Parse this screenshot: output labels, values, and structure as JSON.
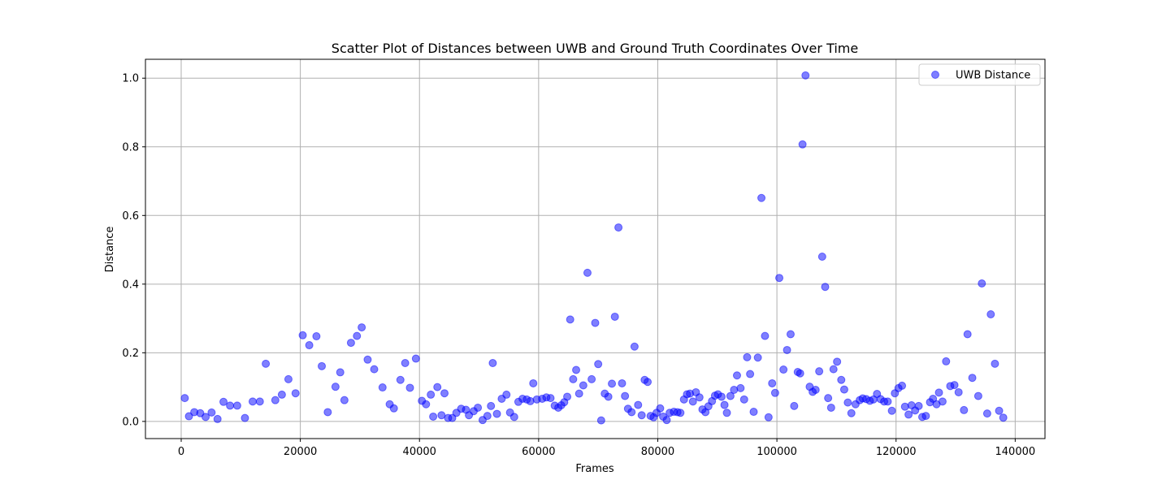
{
  "chart_data": {
    "type": "scatter",
    "title": "Scatter Plot of Distances between UWB and Ground Truth Coordinates Over Time",
    "xlabel": "Frames",
    "ylabel": "Distance",
    "xlim": [
      -6000,
      145000
    ],
    "ylim": [
      -0.05,
      1.055
    ],
    "xticks": [
      0,
      20000,
      40000,
      60000,
      80000,
      100000,
      120000,
      140000
    ],
    "yticks": [
      0.0,
      0.2,
      0.4,
      0.6,
      0.8,
      1.0
    ],
    "xtick_labels": [
      "0",
      "20000",
      "40000",
      "60000",
      "80000",
      "100000",
      "120000",
      "140000"
    ],
    "ytick_labels": [
      "0.0",
      "0.2",
      "0.4",
      "0.6",
      "0.8",
      "1.0"
    ],
    "grid": true,
    "legend_position": "top-right",
    "series": [
      {
        "name": "UWB Distance",
        "color": "#0000ff",
        "alpha": 0.5,
        "points": [
          [
            600,
            0.068
          ],
          [
            1300,
            0.015
          ],
          [
            2200,
            0.027
          ],
          [
            3200,
            0.024
          ],
          [
            4100,
            0.013
          ],
          [
            5100,
            0.026
          ],
          [
            6100,
            0.007
          ],
          [
            7100,
            0.057
          ],
          [
            8200,
            0.046
          ],
          [
            9400,
            0.046
          ],
          [
            10700,
            0.01
          ],
          [
            12000,
            0.058
          ],
          [
            13200,
            0.058
          ],
          [
            14200,
            0.168
          ],
          [
            15800,
            0.062
          ],
          [
            16900,
            0.078
          ],
          [
            18000,
            0.123
          ],
          [
            19200,
            0.082
          ],
          [
            20400,
            0.251
          ],
          [
            21500,
            0.222
          ],
          [
            22700,
            0.248
          ],
          [
            23600,
            0.161
          ],
          [
            24600,
            0.027
          ],
          [
            25900,
            0.101
          ],
          [
            26700,
            0.143
          ],
          [
            27400,
            0.062
          ],
          [
            28500,
            0.229
          ],
          [
            29500,
            0.249
          ],
          [
            30300,
            0.274
          ],
          [
            31300,
            0.18
          ],
          [
            32400,
            0.152
          ],
          [
            33800,
            0.099
          ],
          [
            35000,
            0.05
          ],
          [
            35700,
            0.038
          ],
          [
            36800,
            0.121
          ],
          [
            37600,
            0.17
          ],
          [
            38400,
            0.098
          ],
          [
            39400,
            0.183
          ],
          [
            40400,
            0.06
          ],
          [
            41100,
            0.05
          ],
          [
            41900,
            0.078
          ],
          [
            42300,
            0.014
          ],
          [
            43000,
            0.1
          ],
          [
            43700,
            0.018
          ],
          [
            44200,
            0.082
          ],
          [
            44800,
            0.01
          ],
          [
            45500,
            0.01
          ],
          [
            46200,
            0.025
          ],
          [
            47000,
            0.037
          ],
          [
            47800,
            0.034
          ],
          [
            48300,
            0.018
          ],
          [
            49100,
            0.03
          ],
          [
            49800,
            0.04
          ],
          [
            50600,
            0.004
          ],
          [
            51400,
            0.016
          ],
          [
            52000,
            0.045
          ],
          [
            52300,
            0.17
          ],
          [
            53000,
            0.022
          ],
          [
            53800,
            0.066
          ],
          [
            54600,
            0.078
          ],
          [
            55200,
            0.026
          ],
          [
            55900,
            0.013
          ],
          [
            56600,
            0.057
          ],
          [
            57300,
            0.066
          ],
          [
            58000,
            0.064
          ],
          [
            58600,
            0.059
          ],
          [
            59100,
            0.111
          ],
          [
            59700,
            0.064
          ],
          [
            60600,
            0.066
          ],
          [
            61300,
            0.07
          ],
          [
            62000,
            0.068
          ],
          [
            62700,
            0.046
          ],
          [
            63300,
            0.04
          ],
          [
            63800,
            0.047
          ],
          [
            64300,
            0.056
          ],
          [
            64800,
            0.072
          ],
          [
            65300,
            0.297
          ],
          [
            65800,
            0.123
          ],
          [
            66300,
            0.15
          ],
          [
            66800,
            0.081
          ],
          [
            67500,
            0.105
          ],
          [
            68200,
            0.433
          ],
          [
            68900,
            0.123
          ],
          [
            69500,
            0.287
          ],
          [
            70000,
            0.167
          ],
          [
            70500,
            0.003
          ],
          [
            71100,
            0.081
          ],
          [
            71700,
            0.072
          ],
          [
            72300,
            0.11
          ],
          [
            72800,
            0.305
          ],
          [
            73400,
            0.565
          ],
          [
            74000,
            0.111
          ],
          [
            74500,
            0.074
          ],
          [
            75000,
            0.037
          ],
          [
            75600,
            0.027
          ],
          [
            76100,
            0.218
          ],
          [
            76700,
            0.048
          ],
          [
            77300,
            0.018
          ],
          [
            77800,
            0.121
          ],
          [
            78300,
            0.115
          ],
          [
            78800,
            0.016
          ],
          [
            79300,
            0.012
          ],
          [
            79800,
            0.025
          ],
          [
            80400,
            0.038
          ],
          [
            80900,
            0.014
          ],
          [
            81500,
            0.004
          ],
          [
            82000,
            0.025
          ],
          [
            82700,
            0.028
          ],
          [
            83300,
            0.027
          ],
          [
            83800,
            0.025
          ],
          [
            84400,
            0.064
          ],
          [
            84900,
            0.079
          ],
          [
            85400,
            0.081
          ],
          [
            85900,
            0.058
          ],
          [
            86400,
            0.085
          ],
          [
            87000,
            0.07
          ],
          [
            87500,
            0.035
          ],
          [
            88000,
            0.027
          ],
          [
            88500,
            0.044
          ],
          [
            89100,
            0.059
          ],
          [
            89600,
            0.075
          ],
          [
            90100,
            0.079
          ],
          [
            90700,
            0.072
          ],
          [
            91200,
            0.048
          ],
          [
            91600,
            0.025
          ],
          [
            92200,
            0.074
          ],
          [
            92800,
            0.092
          ],
          [
            93300,
            0.134
          ],
          [
            93900,
            0.097
          ],
          [
            94500,
            0.064
          ],
          [
            95000,
            0.187
          ],
          [
            95500,
            0.138
          ],
          [
            96100,
            0.028
          ],
          [
            96800,
            0.186
          ],
          [
            97400,
            0.651
          ],
          [
            98000,
            0.249
          ],
          [
            98600,
            0.012
          ],
          [
            99200,
            0.111
          ],
          [
            99700,
            0.083
          ],
          [
            100400,
            0.418
          ],
          [
            101100,
            0.151
          ],
          [
            101700,
            0.208
          ],
          [
            102300,
            0.254
          ],
          [
            102900,
            0.045
          ],
          [
            103500,
            0.144
          ],
          [
            103900,
            0.14
          ],
          [
            104300,
            0.807
          ],
          [
            104800,
            1.008
          ],
          [
            105500,
            0.101
          ],
          [
            106000,
            0.086
          ],
          [
            106500,
            0.092
          ],
          [
            107100,
            0.146
          ],
          [
            107600,
            0.48
          ],
          [
            108100,
            0.392
          ],
          [
            108600,
            0.068
          ],
          [
            109100,
            0.04
          ],
          [
            109500,
            0.152
          ],
          [
            110100,
            0.174
          ],
          [
            110800,
            0.121
          ],
          [
            111300,
            0.093
          ],
          [
            111900,
            0.055
          ],
          [
            112500,
            0.024
          ],
          [
            113200,
            0.05
          ],
          [
            113900,
            0.062
          ],
          [
            114400,
            0.067
          ],
          [
            115000,
            0.065
          ],
          [
            115600,
            0.06
          ],
          [
            116200,
            0.064
          ],
          [
            116800,
            0.08
          ],
          [
            117400,
            0.065
          ],
          [
            118000,
            0.058
          ],
          [
            118600,
            0.058
          ],
          [
            119300,
            0.031
          ],
          [
            119800,
            0.082
          ],
          [
            120400,
            0.097
          ],
          [
            121000,
            0.104
          ],
          [
            121500,
            0.043
          ],
          [
            122100,
            0.02
          ],
          [
            122600,
            0.047
          ],
          [
            123200,
            0.032
          ],
          [
            123800,
            0.045
          ],
          [
            124400,
            0.013
          ],
          [
            125000,
            0.016
          ],
          [
            125700,
            0.056
          ],
          [
            126200,
            0.066
          ],
          [
            126800,
            0.05
          ],
          [
            127200,
            0.084
          ],
          [
            127800,
            0.058
          ],
          [
            128400,
            0.175
          ],
          [
            129100,
            0.103
          ],
          [
            129800,
            0.106
          ],
          [
            130500,
            0.085
          ],
          [
            131400,
            0.033
          ],
          [
            132000,
            0.254
          ],
          [
            132800,
            0.127
          ],
          [
            133800,
            0.074
          ],
          [
            134400,
            0.402
          ],
          [
            135300,
            0.023
          ],
          [
            135900,
            0.312
          ],
          [
            136600,
            0.168
          ],
          [
            137300,
            0.031
          ],
          [
            138000,
            0.011
          ]
        ]
      }
    ]
  }
}
